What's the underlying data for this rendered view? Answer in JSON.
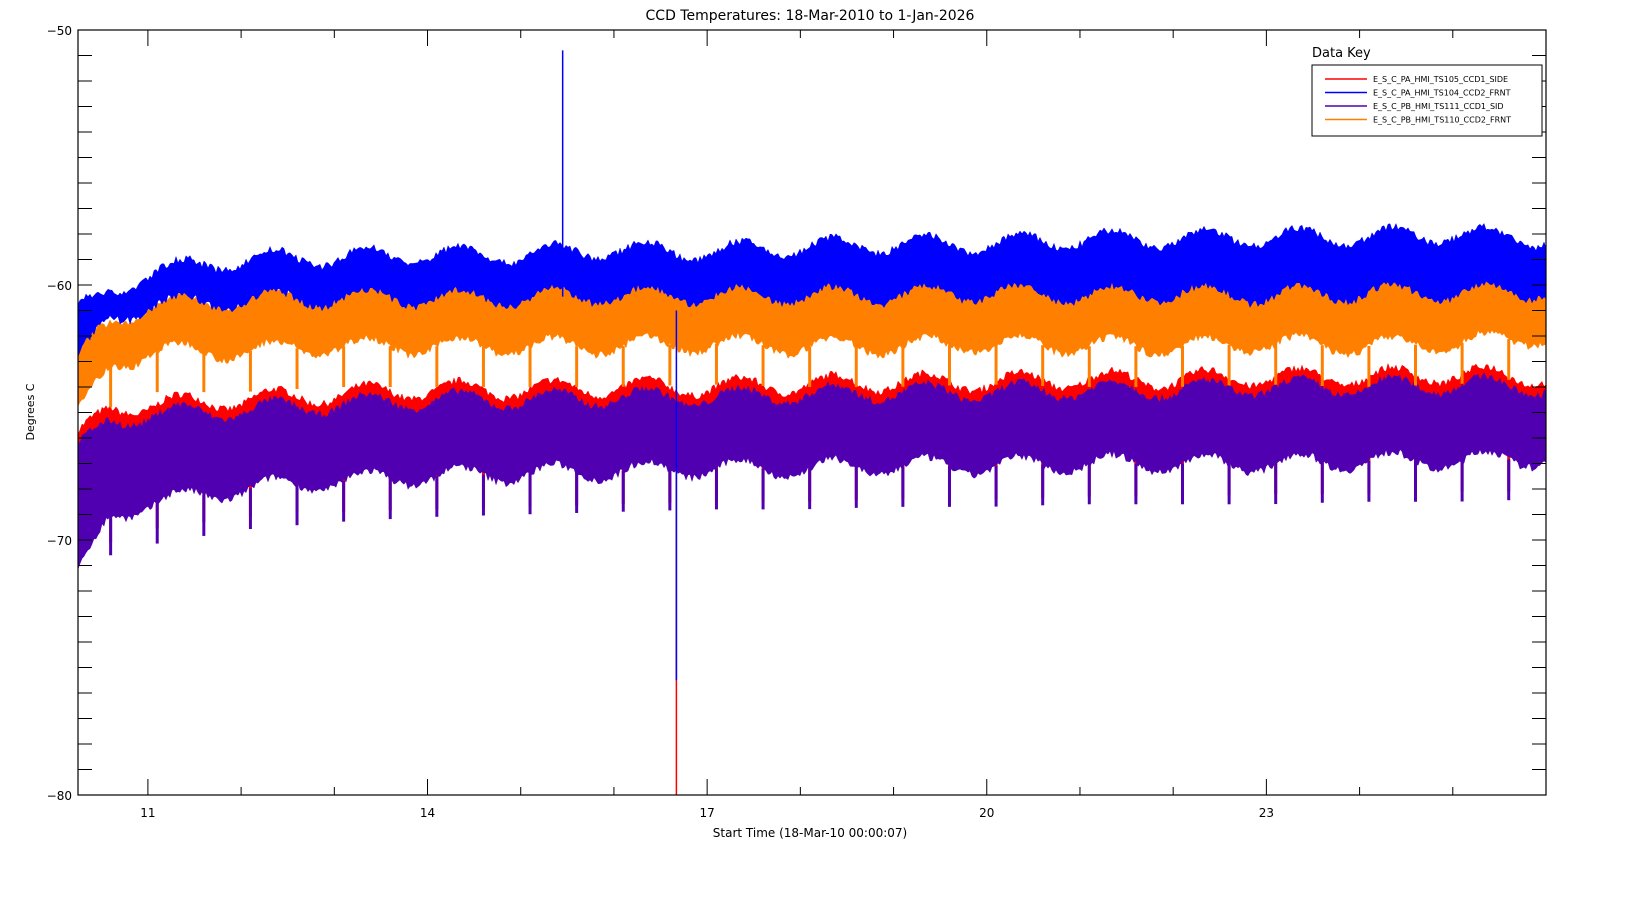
{
  "chart_data": {
    "type": "line",
    "title": "CCD Temperatures: 18-Mar-2010 to 1-Jan-2026",
    "xlabel": "Start Time (18-Mar-10 00:00:07)",
    "ylabel": "Degrees C",
    "xlim": [
      10.25,
      26.0
    ],
    "ylim": [
      -80,
      -50
    ],
    "x_ticks": [
      11,
      14,
      17,
      20,
      23
    ],
    "x_tick_labels": [
      "11",
      "14",
      "17",
      "20",
      "23"
    ],
    "y_ticks": [
      -50,
      -60,
      -70,
      -80
    ],
    "y_tick_labels": [
      "-50",
      "-60",
      "-70",
      "-80"
    ],
    "grid": false,
    "legend": {
      "title": "Data Key",
      "placement": "top-right"
    },
    "series": [
      {
        "name": "E_S_C_PA_HMI_TS105_CCD1_SIDE",
        "color": "#ff0000",
        "band_x": [
          10.25,
          10.6,
          11,
          12,
          13,
          14,
          15,
          16,
          17,
          18,
          19,
          20,
          21,
          22,
          23,
          24,
          25,
          26
        ],
        "upper": [
          -66,
          -64.8,
          -64.7,
          -64.5,
          -64.3,
          -64.1,
          -64.1,
          -64.0,
          -64.0,
          -63.9,
          -63.8,
          -63.8,
          -63.7,
          -63.7,
          -63.6,
          -63.6,
          -63.5,
          -63.6
        ],
        "lower": [
          -71,
          -68.5,
          -68,
          -67.5,
          -67.3,
          -67.2,
          -67.1,
          -67.0,
          -66.9,
          -66.9,
          -66.8,
          -66.8,
          -66.7,
          -66.7,
          -66.6,
          -66.6,
          -66.5,
          -66.5
        ],
        "spikes": [
          [
            16.67,
            -80
          ]
        ]
      },
      {
        "name": "E_S_C_PA_HMI_TS104_CCD2_FRNT",
        "color": "#0000ff",
        "band_x": [
          10.25,
          10.6,
          11,
          12,
          13,
          14,
          15,
          16,
          17,
          18,
          19,
          20,
          21,
          22,
          23,
          24,
          25,
          26
        ],
        "upper": [
          -61,
          -60.3,
          -59.5,
          -59.0,
          -58.9,
          -58.8,
          -58.8,
          -58.6,
          -58.7,
          -58.5,
          -58.4,
          -58.4,
          -58.2,
          -58.2,
          -58.1,
          -58.1,
          -58.0,
          -58.2
        ],
        "lower": [
          -63,
          -61.3,
          -60.8,
          -60.6,
          -60.5,
          -60.5,
          -60.5,
          -60.4,
          -60.4,
          -60.4,
          -60.4,
          -60.3,
          -60.4,
          -60.3,
          -60.4,
          -60.3,
          -60.3,
          -60.2
        ],
        "spikes": [
          [
            15.45,
            -50.8
          ],
          [
            16.67,
            -75.5
          ]
        ]
      },
      {
        "name": "E_S_C_PB_HMI_TS111_CCD1_SID",
        "color": "#5000b0",
        "band_x": [
          10.25,
          10.6,
          11,
          12,
          13,
          14,
          15,
          16,
          17,
          18,
          19,
          20,
          21,
          22,
          23,
          24,
          25,
          26
        ],
        "upper": [
          -66.5,
          -65.3,
          -65.1,
          -64.9,
          -64.7,
          -64.5,
          -64.5,
          -64.4,
          -64.4,
          -64.3,
          -64.2,
          -64.2,
          -64.1,
          -64.1,
          -64.0,
          -64.0,
          -63.9,
          -64.0
        ],
        "lower": [
          -71.5,
          -69,
          -68.6,
          -68.0,
          -67.7,
          -67.5,
          -67.4,
          -67.3,
          -67.2,
          -67.2,
          -67.1,
          -67.1,
          -67.0,
          -67.0,
          -67.0,
          -66.9,
          -66.9,
          -66.8
        ],
        "spikes": []
      },
      {
        "name": "E_S_C_PB_HMI_TS110_CCD2_FRNT",
        "color": "#ff8000",
        "band_x": [
          10.25,
          10.6,
          11,
          12,
          13,
          14,
          15,
          16,
          17,
          18,
          19,
          20,
          21,
          22,
          23,
          24,
          25,
          26
        ],
        "upper": [
          -62.5,
          -61.5,
          -60.8,
          -60.5,
          -60.3,
          -60.2,
          -60.1,
          -60.1,
          -60.1,
          -59.9,
          -59.9,
          -59.8,
          -59.7,
          -59.6,
          -59.6,
          -59.5,
          -59.5,
          -59.5
        ],
        "lower": [
          -65,
          -63.2,
          -62.6,
          -62.6,
          -62.4,
          -62.4,
          -62.4,
          -62.4,
          -62.3,
          -62.4,
          -62.4,
          -62.3,
          -62.4,
          -62.4,
          -62.3,
          -62.4,
          -62.3,
          -62.0
        ],
        "spikes": []
      }
    ]
  }
}
